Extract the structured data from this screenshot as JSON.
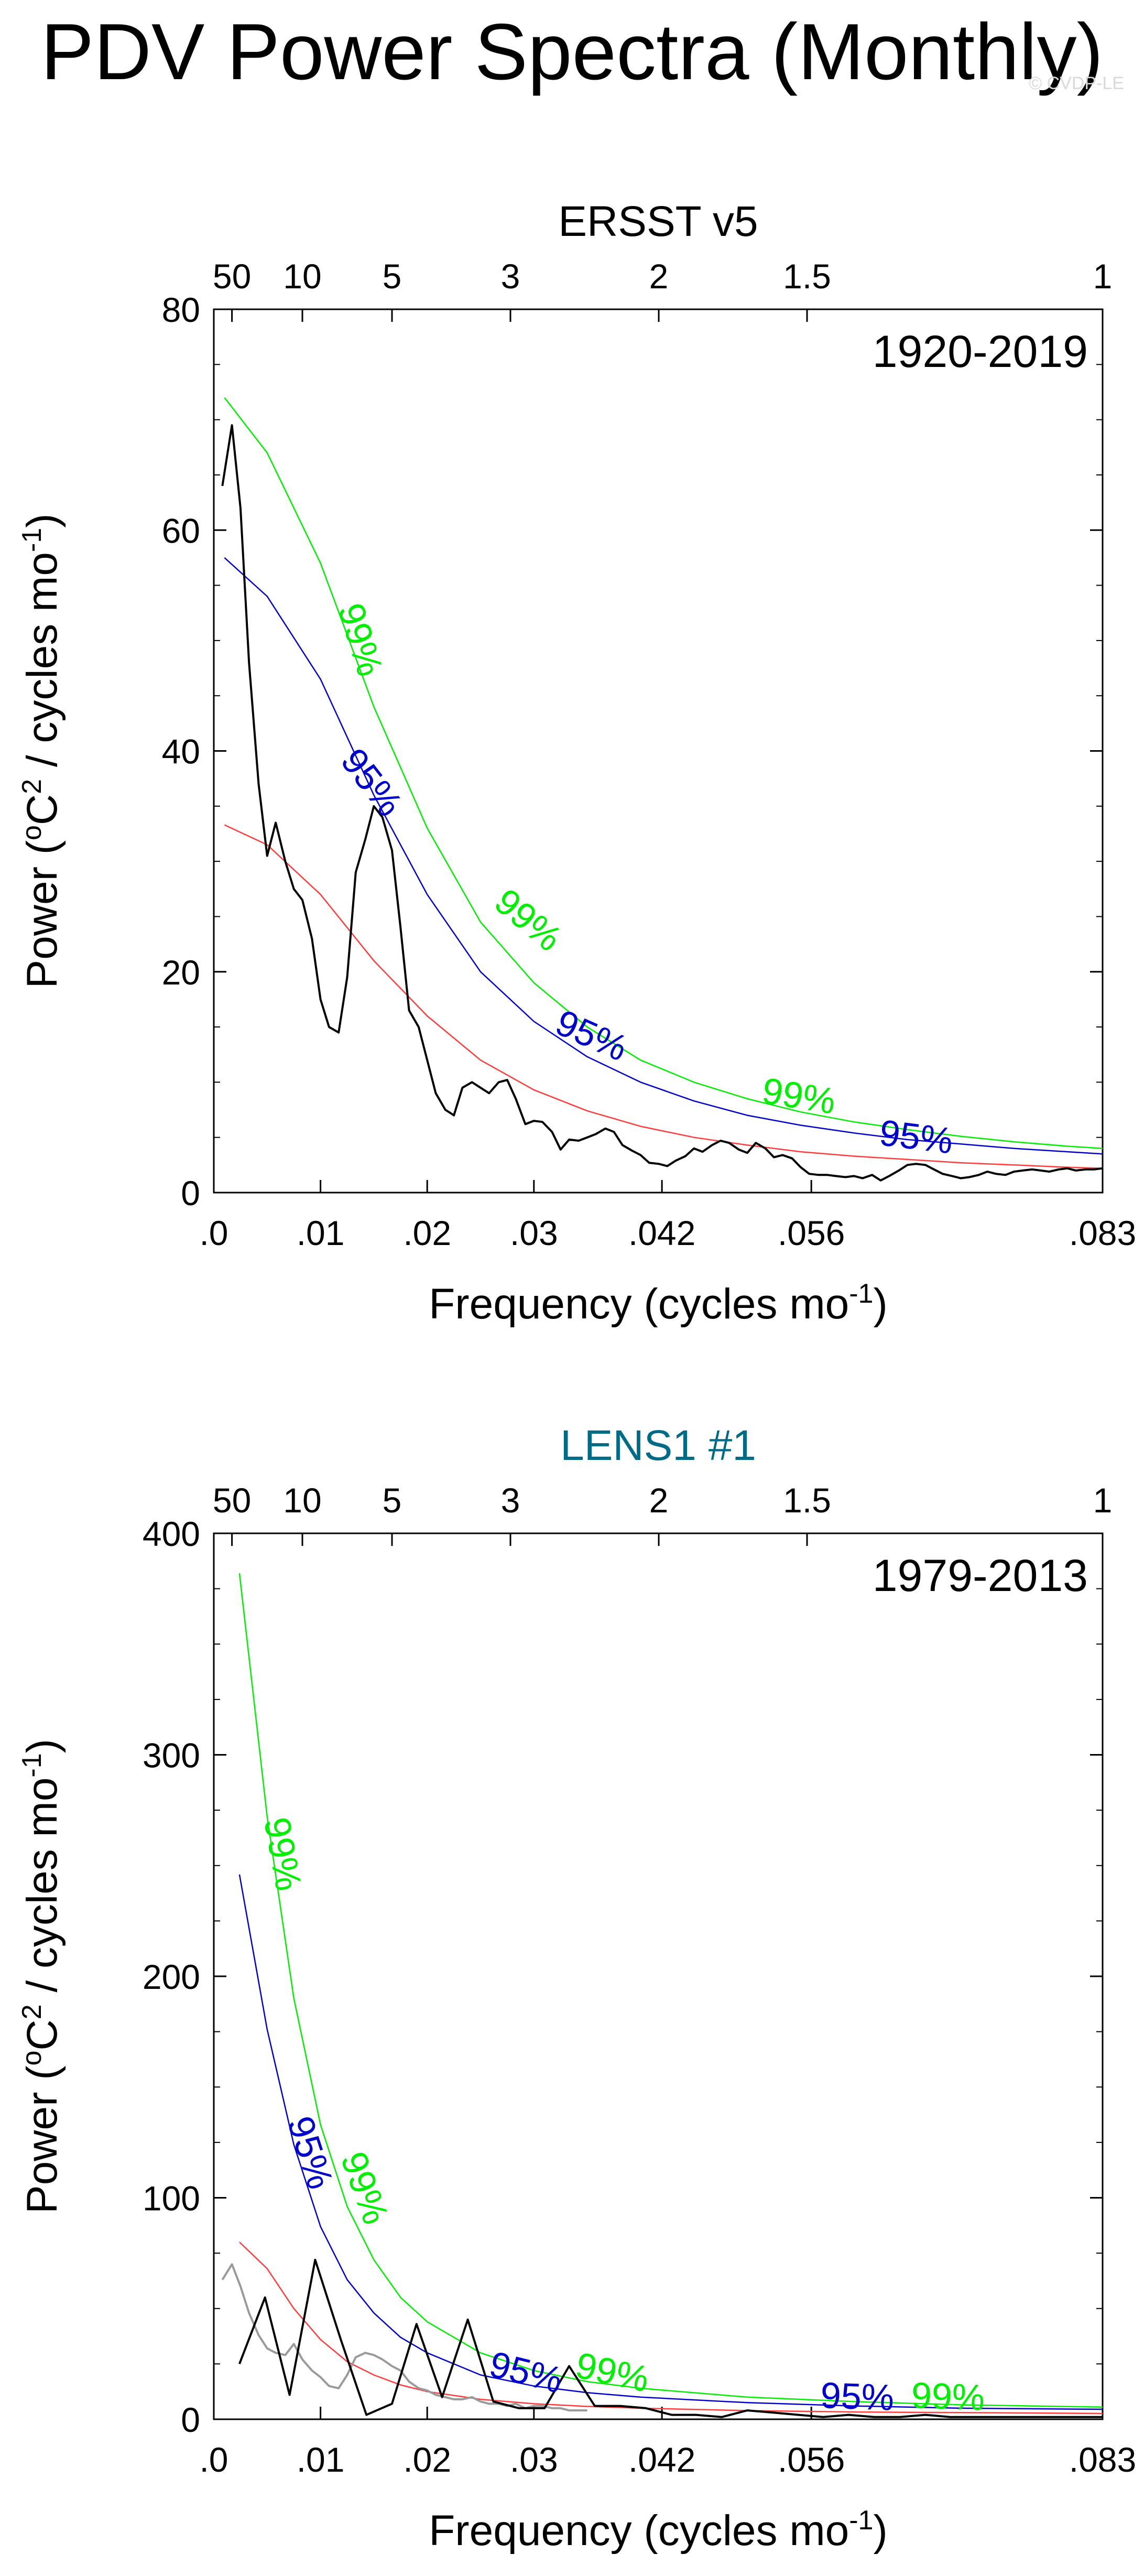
{
  "title": "PDV Power Spectra (Monthly)",
  "watermark": "© CVDP-LE",
  "colors": {
    "sig99": "#00ee00",
    "sig95": "#0000cd",
    "red": "#ff3b3b",
    "spectrum": "#000000",
    "grey": "#9a9a9a",
    "lens_title": "#006b86"
  },
  "chart_data": [
    {
      "type": "line",
      "title": "ERSST v5",
      "period": "1920-2019",
      "xlabel": "Frequency (cycles mo",
      "xlabel_sup": "-1",
      "xlabel_end": ")",
      "ylabel_a": "Power (",
      "ylabel_o": "o",
      "ylabel_b": "C",
      "ylabel_2": "2",
      "ylabel_c": " / cycles mo",
      "ylabel_sup": "-1",
      "ylabel_end": ")",
      "xlim": [
        0,
        0.0833
      ],
      "ylim": [
        0,
        80
      ],
      "yticks": [
        0,
        20,
        40,
        60,
        80
      ],
      "xticks": [
        {
          "v": 0,
          "label": ".0"
        },
        {
          "v": 0.01,
          "label": ".01"
        },
        {
          "v": 0.02,
          "label": ".02"
        },
        {
          "v": 0.03,
          "label": ".03"
        },
        {
          "v": 0.042,
          "label": ".042"
        },
        {
          "v": 0.056,
          "label": ".056"
        },
        {
          "v": 0.0833,
          "label": ".083"
        }
      ],
      "top_ticks": [
        {
          "v": 0.0017,
          "label": "50"
        },
        {
          "v": 0.0083,
          "label": "10"
        },
        {
          "v": 0.0167,
          "label": "5"
        },
        {
          "v": 0.0278,
          "label": "3"
        },
        {
          "v": 0.0417,
          "label": "2"
        },
        {
          "v": 0.0556,
          "label": "1.5"
        },
        {
          "v": 0.0833,
          "label": "1"
        }
      ],
      "series": [
        {
          "name": "spectrum",
          "color": "#000000",
          "x": [
            0.0008,
            0.0017,
            0.0025,
            0.0033,
            0.0042,
            0.005,
            0.0058,
            0.0067,
            0.0075,
            0.0083,
            0.0092,
            0.01,
            0.0108,
            0.0117,
            0.0125,
            0.0133,
            0.0142,
            0.015,
            0.0158,
            0.0167,
            0.0175,
            0.0183,
            0.0192,
            0.02,
            0.0208,
            0.0217,
            0.0225,
            0.0233,
            0.0242,
            0.025,
            0.0258,
            0.0267,
            0.0275,
            0.0283,
            0.0292,
            0.03,
            0.0308,
            0.0317,
            0.0325,
            0.0333,
            0.0342,
            0.035,
            0.0358,
            0.0367,
            0.0375,
            0.0383,
            0.0392,
            0.04,
            0.0408,
            0.0417,
            0.0425,
            0.0433,
            0.0442,
            0.045,
            0.0458,
            0.0467,
            0.0475,
            0.0483,
            0.0492,
            0.05,
            0.0508,
            0.0517,
            0.0525,
            0.0533,
            0.0542,
            0.055,
            0.0558,
            0.0567,
            0.0575,
            0.0583,
            0.0592,
            0.06,
            0.0608,
            0.0617,
            0.0625,
            0.0633,
            0.0642,
            0.065,
            0.0658,
            0.0667,
            0.0675,
            0.0683,
            0.0692,
            0.07,
            0.0708,
            0.0717,
            0.0725,
            0.0733,
            0.0742,
            0.075,
            0.0758,
            0.0767,
            0.0775,
            0.0783,
            0.0792,
            0.08,
            0.0808,
            0.0817,
            0.0825,
            0.0833
          ],
          "y": [
            64,
            69.5,
            62,
            48,
            37,
            30.5,
            33.5,
            30,
            27.5,
            26.5,
            23,
            17.5,
            15,
            14.5,
            19.5,
            29,
            32,
            35,
            34,
            31,
            24,
            16.5,
            15,
            12,
            9,
            7.5,
            7,
            9.5,
            10,
            9.5,
            9,
            10,
            10.2,
            8.5,
            6.2,
            6.5,
            6.4,
            5.5,
            3.9,
            4.8,
            4.7,
            5,
            5.3,
            5.8,
            5.5,
            4.3,
            3.8,
            3.4,
            2.7,
            2.6,
            2.4,
            2.9,
            3.3,
            4,
            3.7,
            4.3,
            4.7,
            4.5,
            3.9,
            3.6,
            4.5,
            4,
            3.2,
            3.4,
            3.1,
            2.3,
            1.7,
            1.6,
            1.6,
            1.5,
            1.4,
            1.5,
            1.3,
            1.6,
            1.1,
            1.5,
            2,
            2.5,
            2.6,
            2.5,
            2.1,
            1.7,
            1.5,
            1.3,
            1.4,
            1.6,
            1.9,
            1.7,
            1.6,
            1.9,
            2,
            2.1,
            2,
            1.9,
            2.1,
            2.2,
            2,
            2.1,
            2.1,
            2.2
          ]
        },
        {
          "name": "red-noise",
          "color": "#ff3b3b",
          "x": [
            0.001,
            0.005,
            0.01,
            0.015,
            0.02,
            0.025,
            0.03,
            0.035,
            0.04,
            0.045,
            0.05,
            0.055,
            0.06,
            0.065,
            0.07,
            0.075,
            0.08,
            0.0833
          ],
          "y": [
            33.3,
            31.5,
            27,
            21,
            16,
            12,
            9.3,
            7.4,
            6,
            5,
            4.3,
            3.7,
            3.3,
            3,
            2.7,
            2.5,
            2.3,
            2.2
          ]
        },
        {
          "name": "95%",
          "color": "#0000cd",
          "x": [
            0.001,
            0.005,
            0.01,
            0.015,
            0.02,
            0.025,
            0.03,
            0.035,
            0.04,
            0.045,
            0.05,
            0.055,
            0.06,
            0.065,
            0.07,
            0.075,
            0.08,
            0.0833
          ],
          "y": [
            57.5,
            54,
            46.5,
            36,
            27,
            20,
            15.5,
            12.3,
            10,
            8.3,
            7,
            6.1,
            5.4,
            4.8,
            4.4,
            4,
            3.7,
            3.5
          ]
        },
        {
          "name": "99%",
          "color": "#00ee00",
          "x": [
            0.001,
            0.005,
            0.01,
            0.015,
            0.02,
            0.025,
            0.03,
            0.035,
            0.04,
            0.045,
            0.05,
            0.055,
            0.06,
            0.065,
            0.07,
            0.075,
            0.08,
            0.0833
          ],
          "y": [
            72,
            67,
            57,
            44,
            33,
            24.5,
            19,
            15,
            12,
            10,
            8.5,
            7.3,
            6.4,
            5.7,
            5.1,
            4.6,
            4.2,
            4
          ]
        }
      ],
      "annotations": [
        {
          "text": "99%",
          "x": 0.0135,
          "y": 50,
          "rot": 73,
          "color": "#00ee00"
        },
        {
          "text": "95%",
          "x": 0.0146,
          "y": 37,
          "rot": 52,
          "color": "#0000cd"
        },
        {
          "text": "99%",
          "x": 0.0293,
          "y": 24.5,
          "rot": 40,
          "color": "#00ee00"
        },
        {
          "text": "95%",
          "x": 0.0353,
          "y": 14,
          "rot": 24,
          "color": "#0000cd"
        },
        {
          "text": "99%",
          "x": 0.0548,
          "y": 8.5,
          "rot": 9,
          "color": "#00ee00"
        },
        {
          "text": "95%",
          "x": 0.0658,
          "y": 4.8,
          "rot": 7,
          "color": "#0000cd"
        }
      ]
    },
    {
      "type": "line",
      "title": "LENS1 #1",
      "period": "1979-2013",
      "xlabel": "Frequency (cycles mo",
      "xlabel_sup": "-1",
      "xlabel_end": ")",
      "ylabel_a": "Power (",
      "ylabel_o": "o",
      "ylabel_b": "C",
      "ylabel_2": "2",
      "ylabel_c": " / cycles mo",
      "ylabel_sup": "-1",
      "ylabel_end": ")",
      "xlim": [
        0,
        0.0833
      ],
      "ylim": [
        0,
        400
      ],
      "yticks": [
        0,
        100,
        200,
        300,
        400
      ],
      "xticks": [
        {
          "v": 0,
          "label": ".0"
        },
        {
          "v": 0.01,
          "label": ".01"
        },
        {
          "v": 0.02,
          "label": ".02"
        },
        {
          "v": 0.03,
          "label": ".03"
        },
        {
          "v": 0.042,
          "label": ".042"
        },
        {
          "v": 0.056,
          "label": ".056"
        },
        {
          "v": 0.0833,
          "label": ".083"
        }
      ],
      "top_ticks": [
        {
          "v": 0.0017,
          "label": "50"
        },
        {
          "v": 0.0083,
          "label": "10"
        },
        {
          "v": 0.0167,
          "label": "5"
        },
        {
          "v": 0.0278,
          "label": "3"
        },
        {
          "v": 0.0417,
          "label": "2"
        },
        {
          "v": 0.0556,
          "label": "1.5"
        },
        {
          "v": 0.0833,
          "label": "1"
        }
      ],
      "series": [
        {
          "name": "grey-spectrum",
          "color": "#9a9a9a",
          "x": [
            0.0008,
            0.0017,
            0.0025,
            0.0033,
            0.0042,
            0.005,
            0.0058,
            0.0067,
            0.0075,
            0.0083,
            0.0092,
            0.01,
            0.0108,
            0.0117,
            0.0125,
            0.0133,
            0.0142,
            0.015,
            0.0158,
            0.0167,
            0.0175,
            0.0183,
            0.0192,
            0.02,
            0.0208,
            0.0217,
            0.0225,
            0.0233,
            0.0242,
            0.025,
            0.0258,
            0.0267,
            0.0275,
            0.0283,
            0.0292,
            0.03,
            0.0308,
            0.0317,
            0.0325,
            0.0333,
            0.0342,
            0.035
          ],
          "y": [
            63,
            70,
            60,
            48,
            38,
            32,
            30,
            29,
            34,
            27,
            22,
            19,
            15,
            14,
            20,
            28,
            30,
            29,
            27,
            24,
            22,
            17,
            14,
            13,
            11,
            10,
            9,
            9,
            10,
            8,
            7,
            7,
            6,
            7,
            5,
            6,
            6,
            5,
            5,
            4,
            4,
            4
          ]
        },
        {
          "name": "black-spectrum",
          "color": "#000000",
          "x": [
            0.0024,
            0.0048,
            0.0071,
            0.0095,
            0.0119,
            0.0143,
            0.0167,
            0.019,
            0.0214,
            0.0238,
            0.0262,
            0.0286,
            0.031,
            0.0333,
            0.0357,
            0.0381,
            0.0405,
            0.0429,
            0.0452,
            0.0476,
            0.05,
            0.0524,
            0.0548,
            0.0571,
            0.0595,
            0.0619,
            0.0643,
            0.0667,
            0.069,
            0.0714,
            0.0738,
            0.0762,
            0.0786,
            0.081,
            0.0833
          ],
          "y": [
            25,
            55,
            11,
            72,
            36,
            2,
            7,
            43,
            10,
            45,
            8,
            5,
            5,
            24,
            6,
            6,
            5,
            2,
            2,
            1,
            4,
            3,
            2,
            1,
            2,
            1,
            1,
            2,
            1,
            1,
            1,
            1,
            1,
            1,
            1
          ]
        },
        {
          "name": "red-noise",
          "color": "#ff3b3b",
          "x": [
            0.0024,
            0.005,
            0.0075,
            0.01,
            0.0125,
            0.015,
            0.0175,
            0.02,
            0.025,
            0.03,
            0.035,
            0.04,
            0.05,
            0.06,
            0.07,
            0.0833
          ],
          "y": [
            80,
            68,
            50,
            36,
            26,
            20,
            15.5,
            12.5,
            9,
            7,
            5.8,
            5,
            3.9,
            3.3,
            3,
            2.6
          ]
        },
        {
          "name": "95%",
          "color": "#0000cd",
          "x": [
            0.0024,
            0.005,
            0.0075,
            0.01,
            0.0125,
            0.015,
            0.0175,
            0.02,
            0.025,
            0.03,
            0.035,
            0.04,
            0.05,
            0.06,
            0.07,
            0.0833
          ],
          "y": [
            246,
            176,
            124,
            87,
            63,
            48,
            37,
            30,
            20,
            15,
            12,
            10,
            7.5,
            6,
            5,
            4.5
          ]
        },
        {
          "name": "99%",
          "color": "#00ee00",
          "x": [
            0.0024,
            0.005,
            0.0075,
            0.01,
            0.0125,
            0.015,
            0.0175,
            0.02,
            0.025,
            0.03,
            0.035,
            0.04,
            0.05,
            0.06,
            0.07,
            0.0833
          ],
          "y": [
            382,
            272,
            190,
            133,
            96,
            72,
            55,
            44,
            30,
            22,
            17,
            14,
            10,
            8,
            6.5,
            5.5
          ]
        }
      ],
      "annotations": [
        {
          "text": "99%",
          "x": 0.0062,
          "y": 255,
          "rot": 80,
          "color": "#00ee00"
        },
        {
          "text": "95%",
          "x": 0.0088,
          "y": 120,
          "rot": 72,
          "color": "#0000cd"
        },
        {
          "text": "99%",
          "x": 0.0139,
          "y": 104,
          "rot": 70,
          "color": "#00ee00"
        },
        {
          "text": "95%",
          "x": 0.0292,
          "y": 20,
          "rot": 14,
          "color": "#0000cd"
        },
        {
          "text": "99%",
          "x": 0.0373,
          "y": 20,
          "rot": 12,
          "color": "#00ee00"
        },
        {
          "text": "95%",
          "x": 0.0603,
          "y": 9,
          "rot": 2,
          "color": "#0000cd"
        },
        {
          "text": "99%",
          "x": 0.0688,
          "y": 9,
          "rot": 2,
          "color": "#00ee00"
        }
      ]
    }
  ]
}
